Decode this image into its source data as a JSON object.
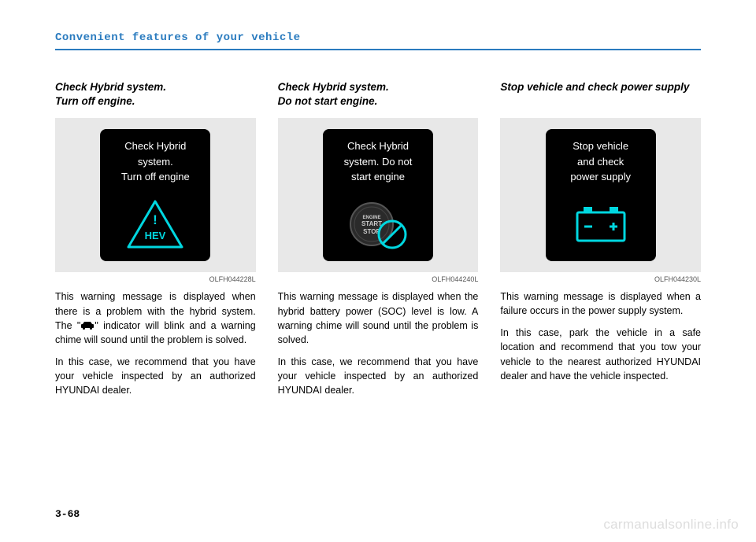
{
  "header": "Convenient features of your vehicle",
  "pageNumber": "3-68",
  "watermark": "carmanualsonline.info",
  "sections": [
    {
      "title": "Check Hybrid system.\nTurn off engine.",
      "screen": {
        "line1": "Check Hybrid",
        "line2": "system.",
        "line3": "Turn off engine",
        "iconType": "hev-triangle",
        "accent": "#00d7e0"
      },
      "imgCode": "OLFH044228L",
      "paragraphs": [
        "This warning message is displayed when there is a problem with the hybrid system. The \"__ICON__\" indicator will blink and a warning chime will sound until the problem is solved.",
        "In this case, we recommend that you have your vehicle inspected by an authorized HYUNDAI dealer."
      ]
    },
    {
      "title": "Check Hybrid system.\nDo not start engine.",
      "screen": {
        "line1": "Check Hybrid",
        "line2": "system. Do not",
        "line3": "start engine",
        "iconType": "engine-button",
        "accent": "#00d7e0"
      },
      "imgCode": "OLFH044240L",
      "paragraphs": [
        "This warning message is displayed when the hybrid battery power (SOC)  level is low. A warning chime will sound until the problem is solved.",
        "In this case, we recommend that you have your vehicle inspected by an authorized HYUNDAI dealer."
      ]
    },
    {
      "title": "Stop vehicle and check power supply",
      "screen": {
        "line1": "Stop vehicle",
        "line2": "and check",
        "line3": "power supply",
        "iconType": "battery",
        "accent": "#00d7e0"
      },
      "imgCode": "OLFH044230L",
      "paragraphs": [
        "This warning message is displayed when a failure occurs in the power supply system.",
        "In this case, park the vehicle in a safe location and recommend that you tow your vehicle to the nearest authorized HYUNDAI dealer and have the vehicle inspected."
      ]
    }
  ]
}
